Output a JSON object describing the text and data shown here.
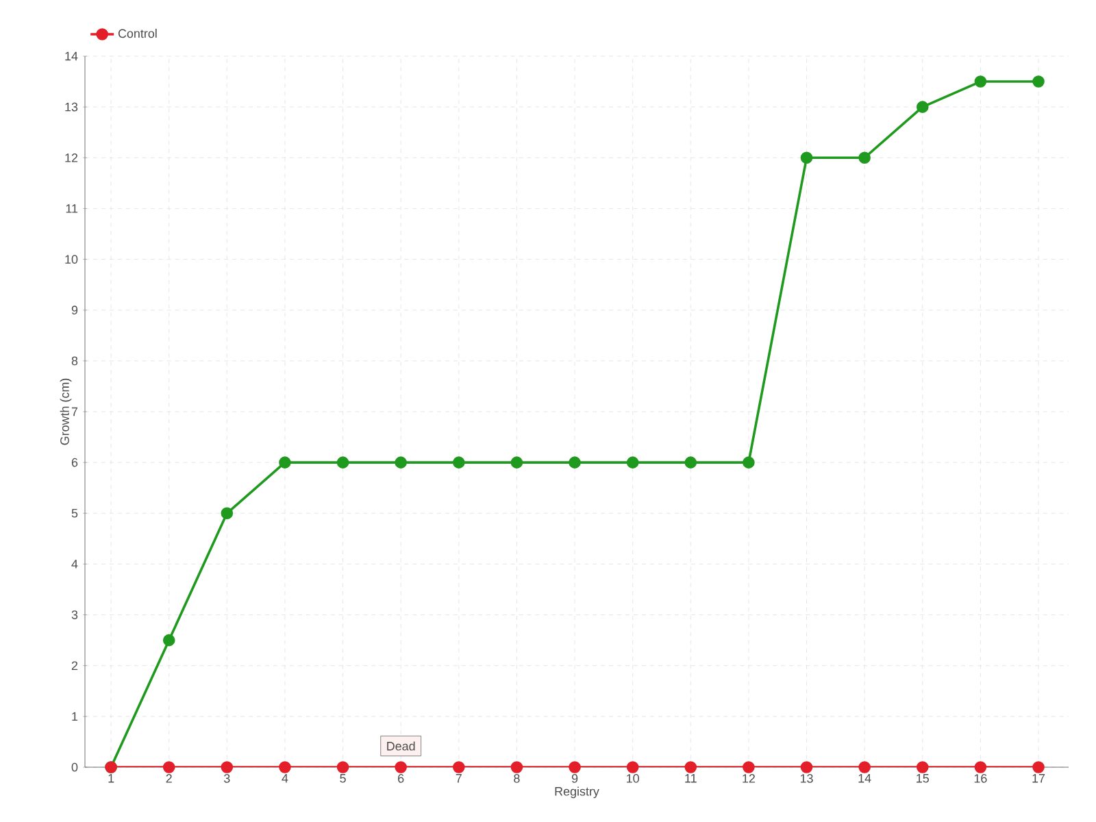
{
  "chart_data": {
    "type": "line",
    "xlabel": "Registry",
    "ylabel": "Growth (cm)",
    "categories": [
      "1",
      "2",
      "3",
      "4",
      "5",
      "6",
      "7",
      "8",
      "9",
      "10",
      "11",
      "12",
      "13",
      "14",
      "15",
      "16",
      "17"
    ],
    "series": [
      {
        "color": "#1f9a1f",
        "values": [
          0,
          2.5,
          5,
          6,
          6,
          6,
          6,
          6,
          6,
          6,
          6,
          6,
          12,
          12,
          13,
          13.5,
          13.5
        ]
      },
      {
        "name": "Control",
        "color": "#e3202a",
        "values": [
          0,
          0,
          0,
          0,
          0,
          0,
          0,
          0,
          0,
          0,
          0,
          0,
          0,
          0,
          0,
          0,
          0
        ]
      }
    ],
    "ylim": [
      0,
      14
    ],
    "yticks": [
      0,
      1,
      2,
      3,
      4,
      5,
      6,
      7,
      8,
      9,
      10,
      11,
      12,
      13,
      14
    ],
    "grid": true,
    "legend": "top left",
    "marker": "circle",
    "annotations": [
      {
        "text": "Dead",
        "x": "6",
        "y": 0
      }
    ]
  }
}
